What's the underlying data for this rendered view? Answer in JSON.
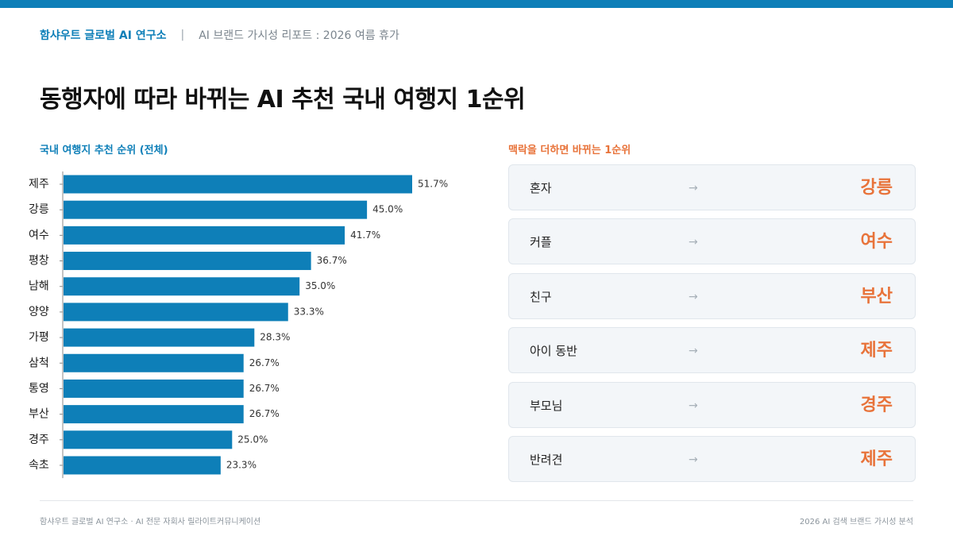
{
  "header": {
    "org": "함샤우트 글로벌 AI 연구소",
    "separator": "|",
    "report": "AI 브랜드 가시성 리포트 : 2026 여름 휴가"
  },
  "page_title": "동행자에 따라 바뀌는 AI 추천 국내 여행지 1순위",
  "chart_data": {
    "type": "bar",
    "orientation": "horizontal",
    "title": "국내 여행지 추천 순위 (전체)",
    "categories": [
      "제주",
      "강릉",
      "여수",
      "평창",
      "남해",
      "양양",
      "가평",
      "삼척",
      "통영",
      "부산",
      "경주",
      "속초"
    ],
    "values": [
      51.7,
      45.0,
      41.7,
      36.7,
      35.0,
      33.3,
      28.3,
      26.7,
      26.7,
      26.7,
      25.0,
      23.3
    ],
    "value_labels": [
      "51.7%",
      "45.0%",
      "41.7%",
      "36.7%",
      "35.0%",
      "33.3%",
      "28.3%",
      "26.7%",
      "26.7%",
      "26.7%",
      "25.0%",
      "23.3%"
    ],
    "unit": "%",
    "xlim": [
      0,
      51.7
    ],
    "color": "#0e7fb8",
    "grid": false,
    "legend": "none"
  },
  "context": {
    "title": "맥락을 더하면 바뀌는 1순위",
    "arrow": "→",
    "items": [
      {
        "who": "혼자",
        "dest": "강릉"
      },
      {
        "who": "커플",
        "dest": "여수"
      },
      {
        "who": "친구",
        "dest": "부산"
      },
      {
        "who": "아이 동반",
        "dest": "제주"
      },
      {
        "who": "부모님",
        "dest": "경주"
      },
      {
        "who": "반려견",
        "dest": "제주"
      }
    ]
  },
  "footer": {
    "left": "함샤우트 글로벌 AI 연구소 · AI 전문 자회사 릴라이트커뮤니케이션",
    "right": "2026 AI 검색 브랜드 가시성 분석"
  },
  "colors": {
    "primary": "#0e7fb8",
    "accent": "#e8733a"
  }
}
